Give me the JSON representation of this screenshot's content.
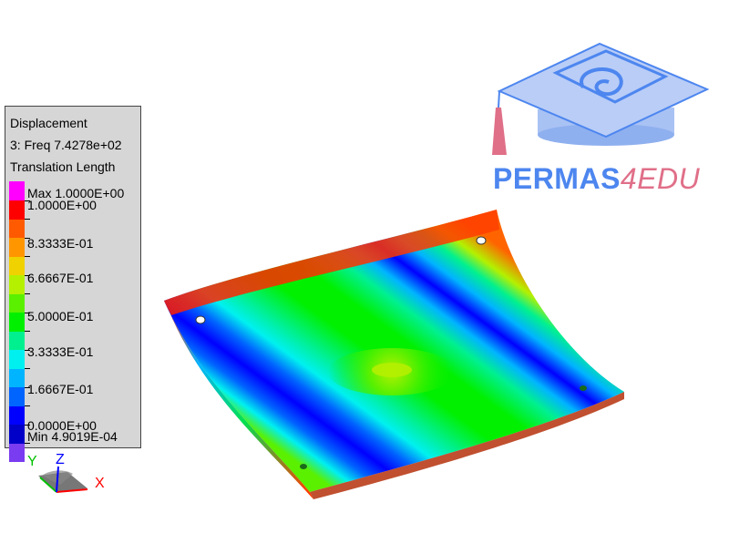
{
  "legend": {
    "title": "Displacement",
    "mode": "3: Freq 7.4278e+02",
    "quantity": "Translation Length",
    "max_label": "Max 1.0000E+00",
    "min_label": "Min 4.9019E-04",
    "values": [
      "1.0000E+00",
      "8.3333E-01",
      "6.6667E-01",
      "5.0000E-01",
      "3.3333E-01",
      "1.6667E-01",
      "0.0000E+00"
    ],
    "colors": [
      "#ff00ff",
      "#ff0000",
      "#ff5a00",
      "#ff9600",
      "#f0d200",
      "#b4f000",
      "#5af000",
      "#00f000",
      "#00f090",
      "#00f0f0",
      "#00b4ff",
      "#0064ff",
      "#0000ff",
      "#0000c8",
      "#7a3cf0"
    ]
  },
  "axes": {
    "x": "X",
    "y": "Y",
    "z": "Z"
  },
  "logo": {
    "part1": "PERMAS",
    "part2": "4EDU"
  }
}
